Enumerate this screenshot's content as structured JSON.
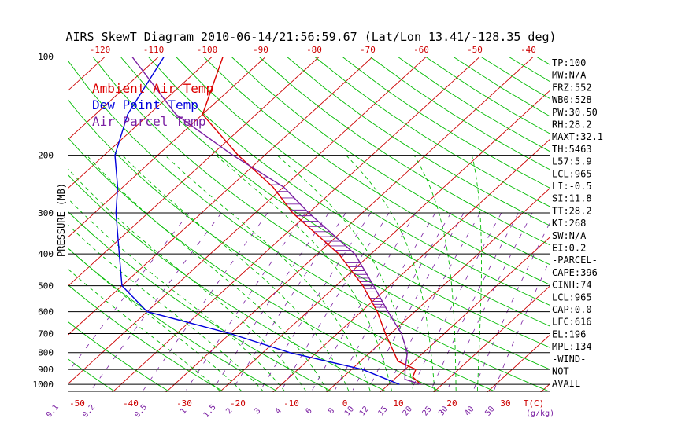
{
  "chart_data": {
    "type": "line",
    "title": "AIRS SkewT Diagram 2010-06-14/21:56:59.67 (Lat/Lon 13.41/-128.35 deg)",
    "ylabel": "PRESSURE (MB)",
    "x_axis_label": "T(C)",
    "mixing_axis_label": "(g/kg)",
    "pressure_levels": [
      100,
      200,
      300,
      400,
      500,
      600,
      700,
      800,
      900,
      1000
    ],
    "pressure_tick_labels": [
      "100",
      "200",
      "300",
      "400",
      "500",
      "600",
      "700",
      "800",
      "900",
      "1000"
    ],
    "top_temperature_ticks": [
      "-120",
      "-110",
      "-100",
      "-90",
      "-80",
      "-70",
      "-60",
      "-50",
      "-40"
    ],
    "bottom_temperature_ticks": [
      "-50",
      "-40",
      "-30",
      "-20",
      "-10",
      "0",
      "10",
      "20",
      "30"
    ],
    "mixing_ratio_labels": [
      "0.1",
      "0.2",
      "0.5",
      "1",
      "1.5",
      "2",
      "3",
      "4",
      "6",
      "8",
      "10",
      "12",
      "15",
      "20",
      "25",
      "30",
      "40",
      "50"
    ],
    "legend": [
      {
        "label": "Ambient Air Temp",
        "color": "#dd0000"
      },
      {
        "label": "Dew Point Temp",
        "color": "#0000dd"
      },
      {
        "label": "Air Parcel Temp",
        "color": "#7a1fa2"
      }
    ],
    "series": [
      {
        "name": "Ambient Air Temp",
        "color": "#dd0000",
        "points": [
          {
            "p": 100,
            "t": -78
          },
          {
            "p": 150,
            "t": -70
          },
          {
            "p": 200,
            "t": -55
          },
          {
            "p": 250,
            "t": -42
          },
          {
            "p": 300,
            "t": -33
          },
          {
            "p": 400,
            "t": -16
          },
          {
            "p": 500,
            "t": -5
          },
          {
            "p": 600,
            "t": 3
          },
          {
            "p": 700,
            "t": 9
          },
          {
            "p": 850,
            "t": 17
          },
          {
            "p": 900,
            "t": 22
          },
          {
            "p": 950,
            "t": 23
          },
          {
            "p": 1000,
            "t": 26
          }
        ]
      },
      {
        "name": "Dew Point Temp",
        "color": "#0000dd",
        "points": [
          {
            "p": 100,
            "t": -89
          },
          {
            "p": 150,
            "t": -84
          },
          {
            "p": 200,
            "t": -78
          },
          {
            "p": 250,
            "t": -71
          },
          {
            "p": 300,
            "t": -66
          },
          {
            "p": 400,
            "t": -57
          },
          {
            "p": 500,
            "t": -50
          },
          {
            "p": 600,
            "t": -40
          },
          {
            "p": 700,
            "t": -20
          },
          {
            "p": 800,
            "t": -5
          },
          {
            "p": 900,
            "t": 12
          },
          {
            "p": 1000,
            "t": 22
          }
        ]
      },
      {
        "name": "Air Parcel Temp",
        "color": "#7a1fa2",
        "points": [
          {
            "p": 100,
            "t": -95
          },
          {
            "p": 150,
            "t": -75
          },
          {
            "p": 200,
            "t": -56
          },
          {
            "p": 250,
            "t": -40
          },
          {
            "p": 300,
            "t": -30
          },
          {
            "p": 400,
            "t": -13
          },
          {
            "p": 500,
            "t": -3
          },
          {
            "p": 600,
            "t": 5
          },
          {
            "p": 700,
            "t": 12
          },
          {
            "p": 800,
            "t": 17
          },
          {
            "p": 900,
            "t": 20
          },
          {
            "p": 965,
            "t": 22
          },
          {
            "p": 1000,
            "t": 26
          }
        ]
      }
    ],
    "stats": [
      "TP:100",
      "MW:N/A",
      "FRZ:552",
      "WB0:528",
      "PW:30.50",
      "RH:28.2",
      "MAXT:32.1",
      "TH:5463",
      "L57:5.9",
      "LCL:965",
      "LI:-0.5",
      "SI:11.8",
      "TT:28.2",
      "KI:268",
      "SW:N/A",
      "EI:0.2",
      "-PARCEL-",
      "CAPE:396",
      "CINH:74",
      "LCL:965",
      "CAP:0.0",
      "LFC:616",
      "EL:196",
      "MPL:134",
      "-WIND-",
      "NOT",
      "AVAIL"
    ],
    "colors": {
      "isotherm": "#cc0000",
      "dry_adiabat": "#00bb00",
      "moist_adiabat": "#00bb00",
      "mixing_ratio": "#7a1fa2",
      "isobar": "#000000"
    }
  }
}
